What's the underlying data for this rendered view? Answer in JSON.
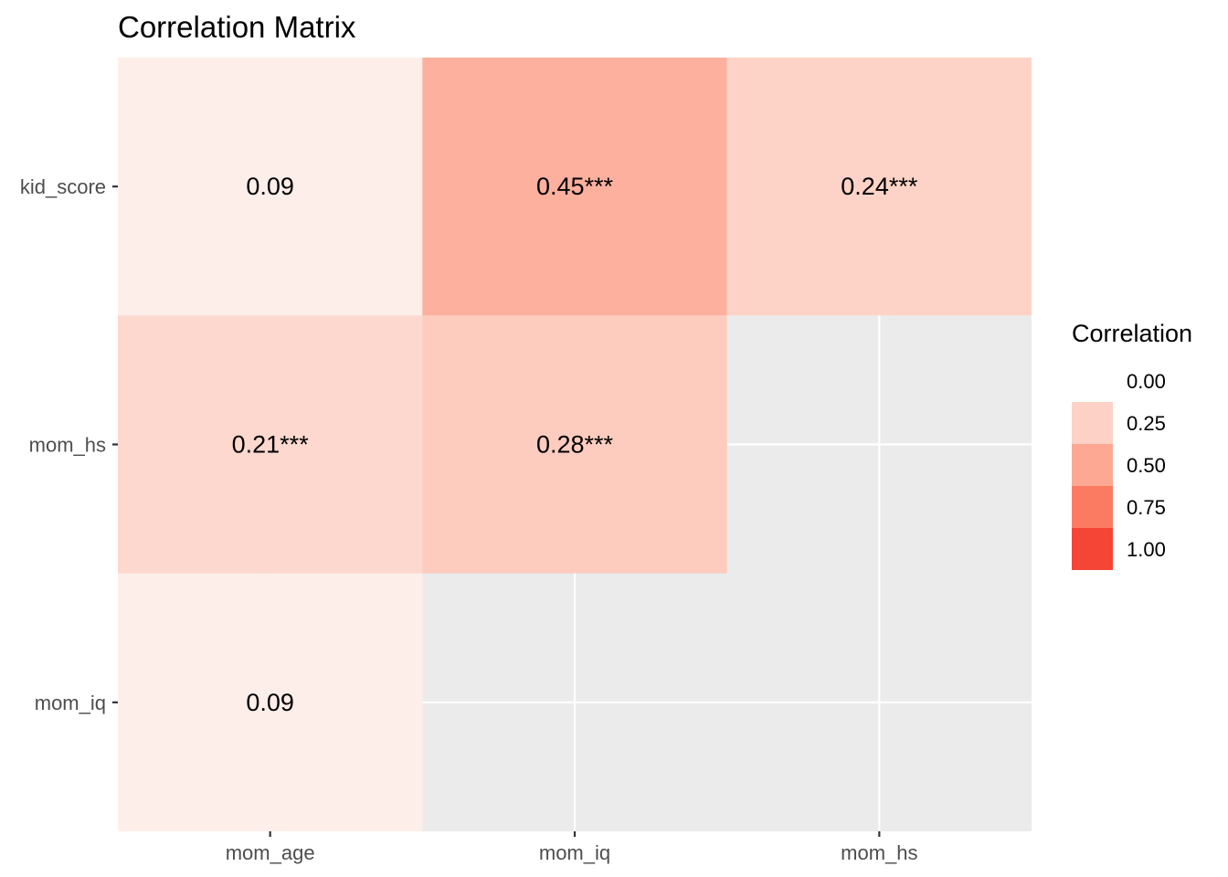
{
  "chart_data": {
    "type": "heatmap",
    "title": "Correlation Matrix",
    "xlabel": "",
    "ylabel": "",
    "x_categories": [
      "mom_age",
      "mom_iq",
      "mom_hs"
    ],
    "y_categories": [
      "kid_score",
      "mom_hs",
      "mom_iq"
    ],
    "cells": [
      {
        "x": "mom_age",
        "y": "kid_score",
        "value": 0.09,
        "label": "0.09"
      },
      {
        "x": "mom_iq",
        "y": "kid_score",
        "value": 0.45,
        "label": "0.45***"
      },
      {
        "x": "mom_hs",
        "y": "kid_score",
        "value": 0.24,
        "label": "0.24***"
      },
      {
        "x": "mom_age",
        "y": "mom_hs",
        "value": 0.21,
        "label": "0.21***"
      },
      {
        "x": "mom_iq",
        "y": "mom_hs",
        "value": 0.28,
        "label": "0.28***"
      },
      {
        "x": "mom_age",
        "y": "mom_iq",
        "value": 0.09,
        "label": "0.09"
      }
    ],
    "legend": {
      "title": "Correlation",
      "placement": "right",
      "breaks": [
        "0.00",
        "0.25",
        "0.50",
        "0.75",
        "1.00"
      ],
      "colors": [
        "#ffffff",
        "#fdd1c5",
        "#fca893",
        "#fb7b62",
        "#f44536"
      ]
    },
    "panel_background": "#ebebeb",
    "grid": true
  }
}
